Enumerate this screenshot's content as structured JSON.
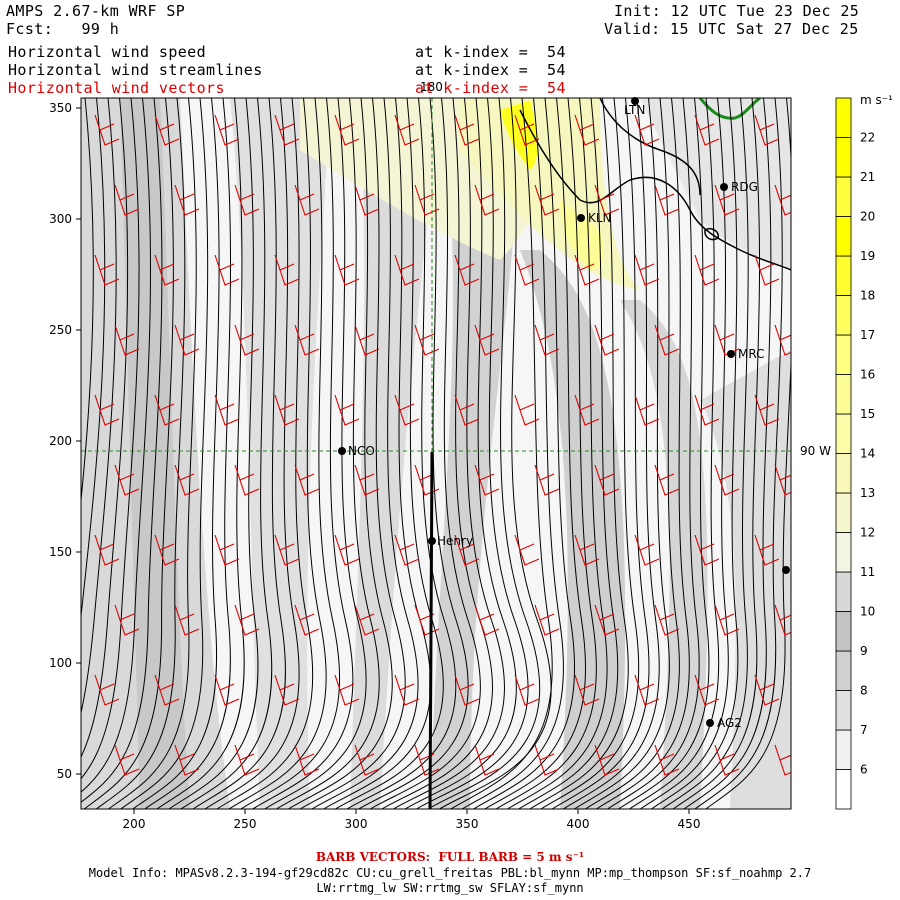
{
  "header": {
    "model": "AMPS 2.67-km WRF SP",
    "fcst": "Fcst:   99 h",
    "init": "Init: 12 UTC Tue 23 Dec 25",
    "valid": "Valid: 15 UTC Sat 27 Dec 25",
    "fields": [
      {
        "name": "Horizontal wind speed",
        "level": "at k-index =  54",
        "color": "#000000"
      },
      {
        "name": "Horizontal wind streamlines",
        "level": "at k-index =  54",
        "color": "#000000"
      },
      {
        "name": "Horizontal wind vectors",
        "level": "at k-index =  54",
        "color": "#e00000"
      }
    ]
  },
  "map": {
    "x_ticks": [
      "200",
      "250",
      "300",
      "350",
      "400",
      "450"
    ],
    "y_ticks": [
      "350",
      "300",
      "250",
      "200",
      "150",
      "100",
      "50"
    ],
    "grid_labels": {
      "meridian": "180",
      "parallel": "90 W"
    },
    "stations": [
      {
        "name": "LTN"
      },
      {
        "name": "RDG"
      },
      {
        "name": "KLN"
      },
      {
        "name": "MRC"
      },
      {
        "name": "NCO"
      },
      {
        "name": "Henry"
      },
      {
        "name": "AG2"
      },
      {
        "name": ""
      }
    ]
  },
  "colorbar": {
    "unit": "m s⁻¹",
    "levels": [
      "6",
      "7",
      "8",
      "9",
      "10",
      "11",
      "12",
      "13",
      "14",
      "15",
      "16",
      "17",
      "18",
      "19",
      "20",
      "21",
      "22"
    ],
    "colors": [
      "#ffffff",
      "#f0f0f0",
      "#e0e0e0",
      "#d0d0d0",
      "#c4c4c4",
      "#d8d8d8",
      "#f4f4e2",
      "#f6f6cc",
      "#f8f8b8",
      "#fbfba8",
      "#fdfd98",
      "#ffff80",
      "#ffff60",
      "#ffff30",
      "#ffff00",
      "#ffff40",
      "#ffff00"
    ]
  },
  "footer": {
    "barb_vectors": "BARB VECTORS:  FULL BARB = 5 m s⁻¹",
    "model_info": "Model Info: MPASv8.2.3-194-gf29cd82c CU:cu_grell_freitas PBL:bl_mynn MP:mp_thompson SF:sf_noahmp 2.7",
    "model_info2": "LW:rrtmg_lw SW:rrtmg_sw SFLAY:sf_mynn"
  },
  "colors": {
    "barb": "#e00000",
    "grid": "#2a8a2a",
    "coast": "#1a8a1a"
  }
}
